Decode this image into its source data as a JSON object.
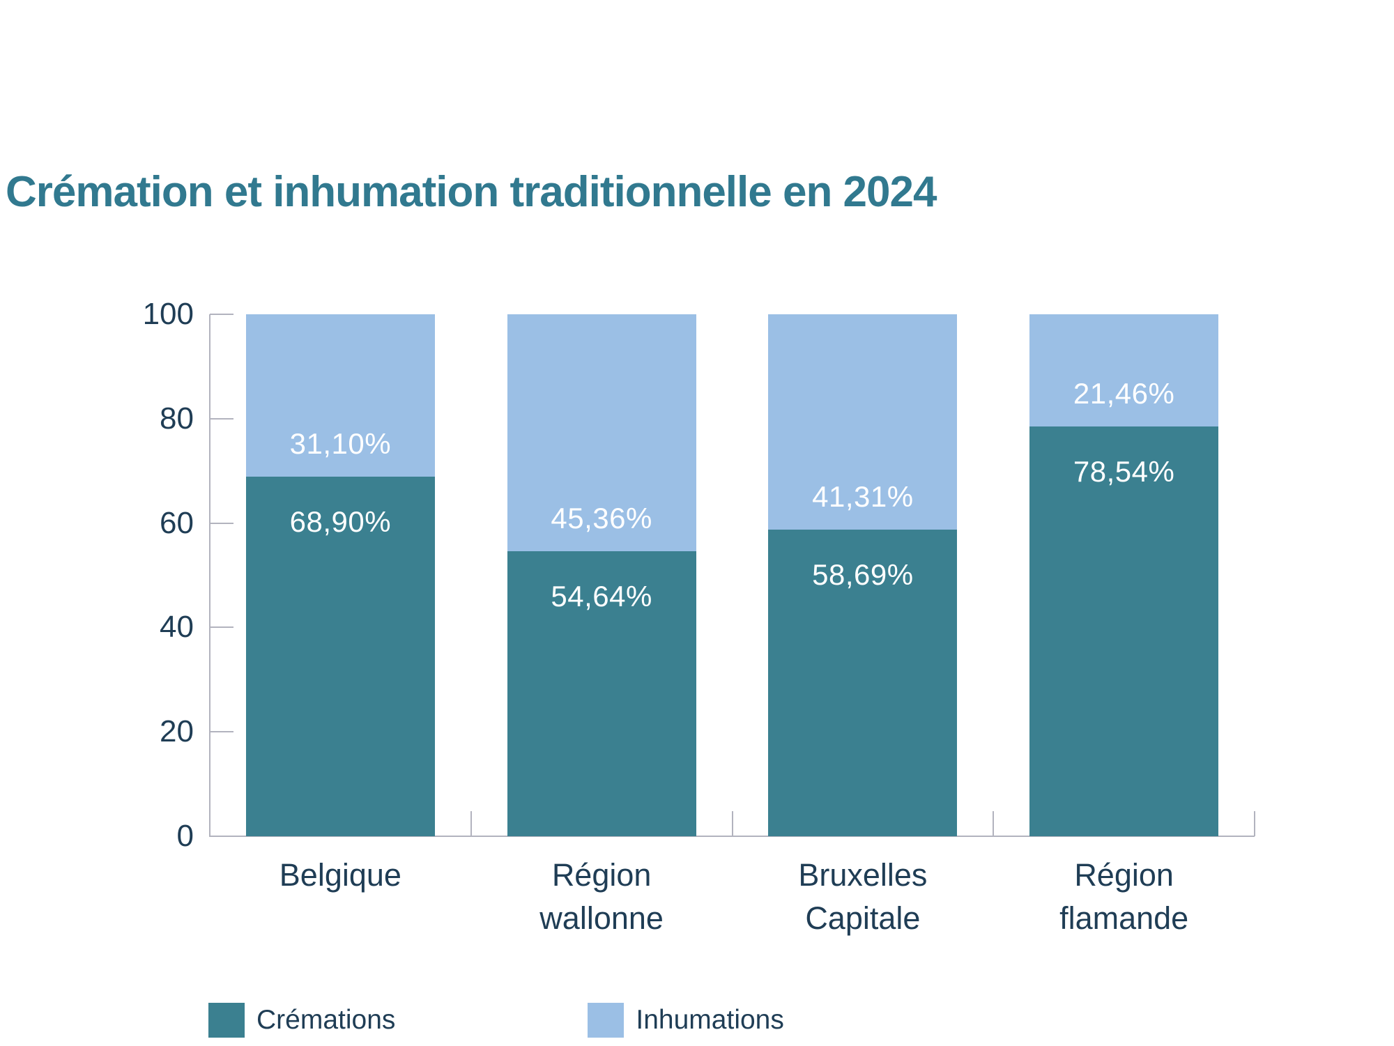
{
  "title": "Crémation et inhumation traditionnelle en 2024",
  "colors": {
    "cremations": "#3b8090",
    "inhumations": "#9bbfe5",
    "title_text": "#31798f",
    "axis_text": "#1f3d55",
    "axis_line": "#b2b3be",
    "bar_label_text": "#ffffff",
    "background": "#ffffff"
  },
  "legend": {
    "items": [
      {
        "label": "Crémations",
        "color_key": "cremations"
      },
      {
        "label": "Inhumations",
        "color_key": "inhumations"
      }
    ]
  },
  "chart_data": {
    "type": "bar",
    "stacked": true,
    "title": "Crémation et inhumation traditionnelle en 2024",
    "categories": [
      "Belgique",
      "Région wallonne",
      "Bruxelles Capitale",
      "Région flamande"
    ],
    "category_lines": [
      [
        "Belgique"
      ],
      [
        "Région",
        "wallonne"
      ],
      [
        "Bruxelles",
        "Capitale"
      ],
      [
        "Région",
        "flamande"
      ]
    ],
    "series": [
      {
        "name": "Crémations",
        "values": [
          68.9,
          54.64,
          58.69,
          78.54
        ],
        "labels": [
          "68,90%",
          "54,64%",
          "58,69%",
          "78,54%"
        ]
      },
      {
        "name": "Inhumations",
        "values": [
          31.1,
          45.36,
          41.31,
          21.46
        ],
        "labels": [
          "31,10%",
          "45,36%",
          "41,31%",
          "21,46%"
        ]
      }
    ],
    "xlabel": "",
    "ylabel": "",
    "ylim": [
      0,
      100
    ],
    "yticks": [
      0,
      20,
      40,
      60,
      80,
      100
    ],
    "grid": false,
    "legend_position": "bottom-left"
  }
}
